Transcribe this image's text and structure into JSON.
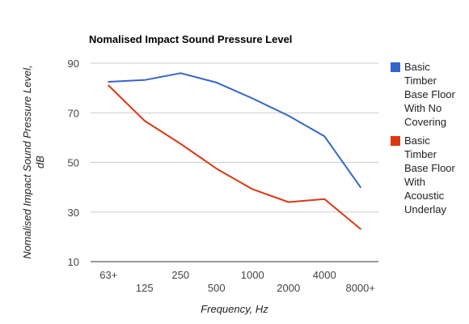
{
  "chart_data": {
    "type": "line",
    "title": "Nomalised Impact Sound Pressure Level",
    "xlabel": "Frequency, Hz",
    "ylabel": "Nomalised Impact Sound Pressure Level, dB",
    "ylabel_lines": [
      "Nomalised Impact Sound Pressure Level,",
      "dB"
    ],
    "categories": [
      "63+",
      "125",
      "250",
      "500",
      "1000",
      "2000",
      "4000",
      "8000+"
    ],
    "ylim": [
      10,
      90
    ],
    "yticks": [
      "10",
      "30",
      "50",
      "70",
      "90"
    ],
    "grid": true,
    "legend_position": "right",
    "series": [
      {
        "name": "Basic Timber Base Floor With No Covering",
        "legend_lines": [
          "Basic",
          "Timber",
          "Base Floor",
          "With No",
          "Covering"
        ],
        "color": "#3366cc",
        "values": [
          82.5,
          83.2,
          86,
          82.2,
          75.8,
          68.8,
          60.5,
          40
        ]
      },
      {
        "name": "Basic Timber Base Floor With Acoustic Underlay",
        "legend_lines": [
          "Basic",
          "Timber",
          "Base Floor",
          "With",
          "Acoustic",
          "Underlay"
        ],
        "color": "#dc3912",
        "values": [
          81,
          66.8,
          57.5,
          47.5,
          39.2,
          34,
          35.2,
          23.2
        ]
      }
    ]
  }
}
